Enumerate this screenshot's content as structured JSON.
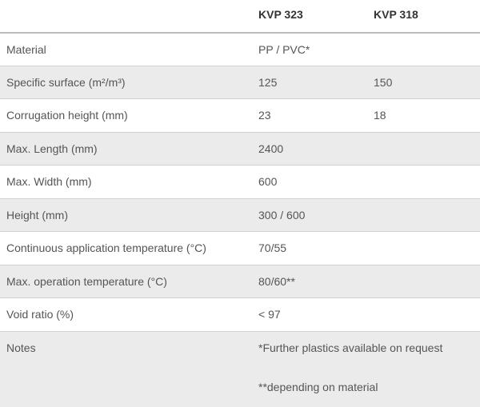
{
  "table": {
    "headers": [
      "KVP 323",
      "KVP 318"
    ],
    "rows": [
      [
        "Material",
        "PP / PVC*"
      ],
      [
        "Specific surface (m²/m³)",
        "125",
        "150"
      ],
      [
        "Corrugation height (mm)",
        "23",
        "18"
      ],
      [
        "Max. Length (mm)",
        "2400"
      ],
      [
        "Max. Width (mm)",
        "600"
      ],
      [
        "Height (mm)",
        "300 / 600"
      ],
      [
        "Continuous application temperature (°C)",
        "70/55"
      ],
      [
        "Max. operation temperature (°C)",
        "80/60**"
      ],
      [
        "Void ratio (%)",
        "< 97"
      ]
    ],
    "notes": {
      "label": "Notes",
      "lines": [
        "*Further plastics available on request",
        "**depending on material"
      ]
    }
  }
}
